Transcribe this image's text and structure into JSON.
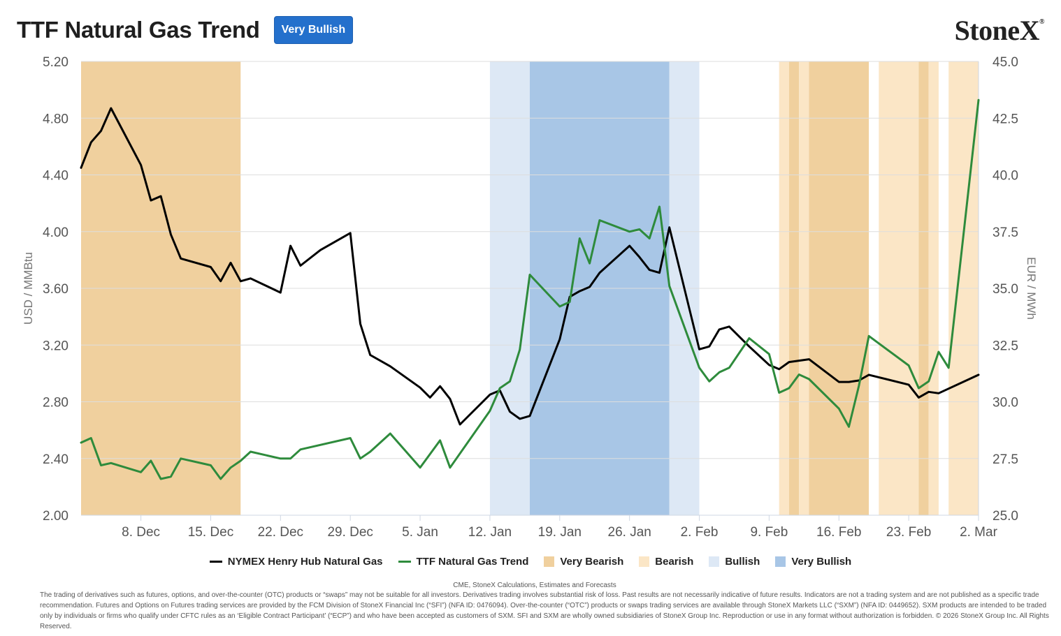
{
  "header": {
    "title": "TTF Natural Gas Trend",
    "badge": "Very Bullish",
    "logo": "StoneX",
    "logo_mark": "®"
  },
  "chart_data": {
    "type": "line",
    "title": "TTF Natural Gas Trend",
    "x_ticks": [
      "8. Dec",
      "15. Dec",
      "22. Dec",
      "29. Dec",
      "5. Jan",
      "12. Jan",
      "19. Jan",
      "26. Jan",
      "2. Feb",
      "9. Feb",
      "16. Feb",
      "23. Feb",
      "2. Mar"
    ],
    "x_tick_days": [
      6,
      13,
      20,
      27,
      34,
      41,
      48,
      55,
      62,
      69,
      76,
      83,
      90
    ],
    "xlim_days": [
      0,
      90
    ],
    "ylabel_left": "USD / MMBtu",
    "ylim_left": [
      2.0,
      5.2
    ],
    "yticks_left": [
      "2.00",
      "2.40",
      "2.80",
      "3.20",
      "3.60",
      "4.00",
      "4.40",
      "4.80",
      "5.20"
    ],
    "ylabel_right": "EUR / MWh",
    "ylim_right": [
      25.0,
      45.0
    ],
    "yticks_right": [
      "25.0",
      "27.5",
      "30.0",
      "32.5",
      "35.0",
      "37.5",
      "40.0",
      "42.5",
      "45.0"
    ],
    "grid": true,
    "legend_position": "bottom",
    "regions": [
      {
        "start": 0,
        "end": 16,
        "label": "Very Bearish"
      },
      {
        "start": 41,
        "end": 45,
        "label": "Bullish"
      },
      {
        "start": 45,
        "end": 59,
        "label": "Very Bullish"
      },
      {
        "start": 59,
        "end": 62,
        "label": "Bullish"
      },
      {
        "start": 70,
        "end": 71,
        "label": "Bearish"
      },
      {
        "start": 71,
        "end": 72,
        "label": "Very Bearish"
      },
      {
        "start": 72,
        "end": 73,
        "label": "Bearish"
      },
      {
        "start": 73,
        "end": 79,
        "label": "Very Bearish"
      },
      {
        "start": 80,
        "end": 84,
        "label": "Bearish"
      },
      {
        "start": 84,
        "end": 85,
        "label": "Very Bearish"
      },
      {
        "start": 85,
        "end": 86,
        "label": "Bearish"
      },
      {
        "start": 87,
        "end": 90,
        "label": "Bearish"
      }
    ],
    "series": [
      {
        "name": "NYMEX Henry Hub Natural Gas",
        "axis": "left",
        "x": [
          0,
          1,
          2,
          3,
          6,
          7,
          8,
          9,
          10,
          13,
          14,
          15,
          16,
          17,
          20,
          21,
          22,
          24,
          27,
          28,
          29,
          31,
          34,
          35,
          36,
          37,
          38,
          41,
          42,
          43,
          44,
          45,
          48,
          49,
          50,
          51,
          52,
          55,
          56,
          57,
          58,
          59,
          62,
          63,
          64,
          65,
          67,
          69,
          70,
          71,
          72,
          73,
          76,
          77,
          78,
          79,
          83,
          84,
          85,
          86,
          90
        ],
        "values": [
          4.45,
          4.63,
          4.71,
          4.87,
          4.47,
          4.22,
          4.25,
          3.98,
          3.81,
          3.75,
          3.65,
          3.78,
          3.65,
          3.67,
          3.57,
          3.9,
          3.76,
          3.87,
          3.99,
          3.35,
          3.13,
          3.05,
          2.9,
          2.83,
          2.91,
          2.82,
          2.64,
          2.85,
          2.88,
          2.73,
          2.68,
          2.7,
          3.24,
          3.54,
          3.58,
          3.61,
          3.71,
          3.9,
          3.82,
          3.73,
          3.71,
          4.03,
          3.17,
          3.19,
          3.31,
          3.33,
          3.19,
          3.06,
          3.03,
          3.08,
          3.09,
          3.1,
          2.94,
          2.94,
          2.95,
          2.99,
          2.92,
          2.83,
          2.87,
          2.86,
          2.99
        ]
      },
      {
        "name": "TTF Natural Gas Trend",
        "axis": "right",
        "x": [
          0,
          1,
          2,
          3,
          6,
          7,
          8,
          9,
          10,
          13,
          14,
          15,
          16,
          17,
          20,
          21,
          22,
          27,
          28,
          29,
          31,
          34,
          36,
          37,
          41,
          42,
          43,
          44,
          45,
          48,
          49,
          50,
          51,
          52,
          55,
          56,
          57,
          58,
          59,
          62,
          63,
          64,
          65,
          67,
          69,
          70,
          71,
          72,
          73,
          76,
          77,
          78,
          79,
          83,
          84,
          85,
          86,
          87,
          90
        ],
        "values": [
          28.2,
          28.4,
          27.2,
          27.3,
          26.9,
          27.4,
          26.6,
          26.7,
          27.5,
          27.2,
          26.6,
          27.1,
          27.4,
          27.8,
          27.5,
          27.5,
          27.9,
          28.4,
          27.5,
          27.8,
          28.6,
          27.1,
          28.3,
          27.1,
          29.6,
          30.6,
          30.9,
          32.3,
          35.6,
          34.2,
          34.4,
          37.2,
          36.1,
          38.0,
          37.5,
          37.6,
          37.2,
          38.6,
          35.1,
          31.5,
          30.9,
          31.3,
          31.5,
          32.8,
          32.1,
          30.4,
          30.6,
          31.2,
          31.0,
          29.7,
          28.9,
          30.7,
          32.9,
          31.6,
          30.6,
          30.9,
          32.2,
          31.5,
          43.3
        ]
      }
    ]
  },
  "legend": {
    "items": [
      {
        "label": "NYMEX Henry Hub Natural Gas",
        "color": "#000000",
        "kind": "line"
      },
      {
        "label": "TTF Natural Gas Trend",
        "color": "#2e8b3c",
        "kind": "line"
      },
      {
        "label": "Very Bearish",
        "color": "#f0d09e",
        "kind": "box"
      },
      {
        "label": "Bearish",
        "color": "#fbe6c6",
        "kind": "box"
      },
      {
        "label": "Bullish",
        "color": "#dde8f5",
        "kind": "box"
      },
      {
        "label": "Very Bullish",
        "color": "#a8c6e6",
        "kind": "box"
      }
    ]
  },
  "colors": {
    "very_bearish": "#f0d09e",
    "bearish": "#fbe6c6",
    "bullish": "#dde8f5",
    "very_bullish": "#a8c6e6",
    "henry_hub": "#000000",
    "ttf": "#2e8b3c",
    "grid": "#dddddd",
    "badge": "#2470cc"
  },
  "footer": {
    "source": "CME, StoneX Calculations, Estimates and Forecasts",
    "disclaimer": "The trading of derivatives such as futures, options, and over-the-counter (OTC) products or “swaps” may not be suitable for all investors. Derivatives trading involves substantial risk of loss. Past results are not necessarily indicative of future results. Indicators are not a trading system and are not published as a specific trade recommendation. Futures and Options on Futures trading services are provided by the FCM Division of StoneX Financial Inc (“SFI”) (NFA ID: 0476094). Over-the-counter (“OTC”) products or swaps trading services are available through StoneX Markets LLC (“SXM”) (NFA ID: 0449652). SXM products are intended to be traded only by individuals or firms who qualify under CFTC rules as an ‘Eligible Contract Participant’ (“ECP”) and who have been accepted as customers of SXM. SFI and SXM are wholly owned subsidiaries of StoneX Group Inc. Reproduction or use in any format without authorization is forbidden. © 2026 StoneX Group Inc. All Rights Reserved."
  }
}
